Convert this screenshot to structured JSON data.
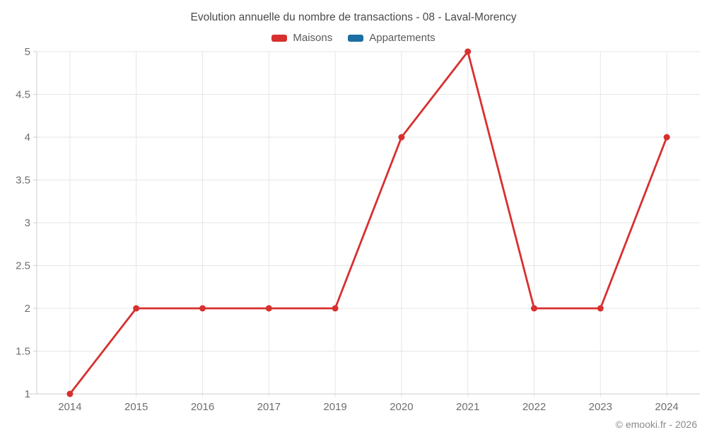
{
  "title": "Evolution annuelle du nombre de transactions - 08 - Laval-Morency",
  "legend": [
    {
      "label": "Maisons",
      "color": "#d7302f"
    },
    {
      "label": "Appartements",
      "color": "#1c6ea4"
    }
  ],
  "footer": {
    "copyright": "© emooki.fr - 2026"
  },
  "colors": {
    "grid": "#e6e6e6",
    "axis": "#cccccc",
    "tick_label": "#6e6e6e",
    "title_text": "#4a4a4a",
    "legend_text": "#5a5a5a",
    "copyright_text": "#8a8a8a"
  },
  "chart_data": {
    "type": "line",
    "title": "Evolution annuelle du nombre de transactions - 08 - Laval-Morency",
    "categories": [
      "2014",
      "2015",
      "2016",
      "2017",
      "2019",
      "2020",
      "2021",
      "2022",
      "2023",
      "2024"
    ],
    "series": [
      {
        "name": "Maisons",
        "color": "#d7302f",
        "values": [
          1,
          2,
          2,
          2,
          2,
          4,
          5,
          2,
          2,
          4
        ]
      },
      {
        "name": "Appartements",
        "color": "#1c6ea4",
        "values": []
      }
    ],
    "xlabel": "",
    "ylabel": "",
    "ylim": [
      1,
      5
    ],
    "yticks": [
      1,
      1.5,
      2,
      2.5,
      3,
      3.5,
      4,
      4.5,
      5
    ],
    "grid": true,
    "legend_position": "top"
  }
}
